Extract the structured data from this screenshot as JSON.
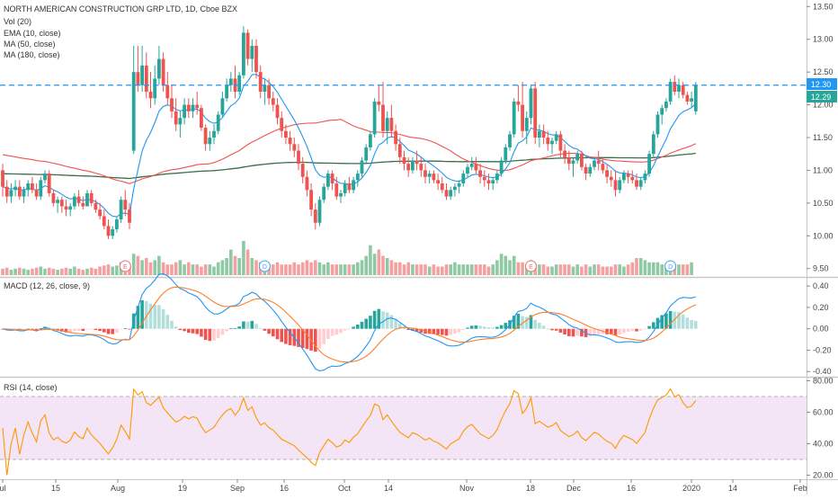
{
  "header": {
    "title": "NORTH AMERICAN CONSTRUCTION GRP LTD, 1D, Cboe BZX",
    "indicators": [
      "Vol (20)",
      "EMA (10, close)",
      "MA (50, close)",
      "MA (180, close)"
    ]
  },
  "macd_pane": {
    "label": "MACD (12, 26, close, 9)"
  },
  "rsi_pane": {
    "label": "RSI (14, close)"
  },
  "price_badges": {
    "upper": "12.30",
    "lower": "12.29"
  },
  "colors": {
    "up": "#26a69a",
    "down": "#ef5350",
    "vol_up": "#8fc9a4",
    "vol_down": "#f5a0a0",
    "ema": "#2196f3",
    "ma50": "#ef5350",
    "ma180": "#3b6e4a",
    "macd": "#2196f3",
    "signal": "#ff7f27",
    "hist_pos_strong": "#26a69a",
    "hist_pos_weak": "#b2dfdb",
    "hist_neg_strong": "#ef5350",
    "hist_neg_weak": "#ffcdd2",
    "rsi": "#ff9800",
    "rsi_band": "#f3e5f5",
    "hline": "#2196f3"
  },
  "events": [
    {
      "symbol": "E",
      "index": 29
    },
    {
      "symbol": "D",
      "index": 62
    },
    {
      "symbol": "E",
      "index": 125
    },
    {
      "symbol": "D",
      "index": 158
    }
  ],
  "chart_data": [
    {
      "type": "candlestick",
      "title": "NORTH AMERICAN CONSTRUCTION GRP LTD, 1D, Cboe BZX",
      "x_ticks": [
        "ul",
        "15",
        "Aug",
        "19",
        "Sep",
        "16",
        "Oct",
        "14",
        "Nov",
        "18",
        "Dec",
        "16",
        "2020",
        "14",
        "Feb"
      ],
      "y_ticks": [
        9.5,
        10.0,
        10.5,
        11.0,
        11.5,
        12.0,
        12.5,
        13.0,
        13.5
      ],
      "ylim": [
        9.4,
        13.6
      ],
      "horizontal_line": 12.3,
      "ohlc": [
        [
          11.0,
          11.1,
          10.6,
          10.75
        ],
        [
          10.75,
          10.85,
          10.5,
          10.6
        ],
        [
          10.6,
          10.8,
          10.5,
          10.7
        ],
        [
          10.7,
          10.85,
          10.6,
          10.75
        ],
        [
          10.75,
          10.85,
          10.55,
          10.6
        ],
        [
          10.6,
          10.75,
          10.5,
          10.7
        ],
        [
          10.7,
          10.85,
          10.6,
          10.8
        ],
        [
          10.8,
          10.9,
          10.65,
          10.7
        ],
        [
          10.7,
          10.8,
          10.55,
          10.6
        ],
        [
          10.6,
          10.9,
          10.55,
          10.85
        ],
        [
          10.85,
          11.0,
          10.8,
          10.95
        ],
        [
          10.95,
          11.0,
          10.6,
          10.65
        ],
        [
          10.65,
          10.7,
          10.45,
          10.5
        ],
        [
          10.5,
          10.6,
          10.35,
          10.55
        ],
        [
          10.55,
          10.6,
          10.35,
          10.45
        ],
        [
          10.45,
          10.55,
          10.3,
          10.4
        ],
        [
          10.4,
          10.5,
          10.3,
          10.45
        ],
        [
          10.45,
          10.65,
          10.4,
          10.6
        ],
        [
          10.6,
          10.7,
          10.45,
          10.5
        ],
        [
          10.5,
          10.6,
          10.4,
          10.45
        ],
        [
          10.45,
          10.7,
          10.45,
          10.65
        ],
        [
          10.65,
          10.7,
          10.45,
          10.5
        ],
        [
          10.5,
          10.55,
          10.35,
          10.4
        ],
        [
          10.4,
          10.5,
          10.25,
          10.3
        ],
        [
          10.3,
          10.4,
          10.1,
          10.15
        ],
        [
          10.15,
          10.25,
          9.95,
          10.0
        ],
        [
          10.0,
          10.15,
          9.95,
          10.1
        ],
        [
          10.1,
          10.3,
          10.05,
          10.25
        ],
        [
          10.25,
          10.6,
          10.2,
          10.55
        ],
        [
          10.55,
          10.7,
          10.3,
          10.4
        ],
        [
          10.4,
          10.5,
          10.1,
          10.2
        ],
        [
          11.3,
          12.9,
          11.25,
          12.5
        ],
        [
          12.5,
          12.9,
          12.2,
          12.3
        ],
        [
          12.3,
          12.9,
          12.2,
          12.6
        ],
        [
          12.6,
          12.8,
          12.1,
          12.2
        ],
        [
          12.2,
          12.5,
          11.95,
          12.1
        ],
        [
          12.1,
          12.6,
          12.0,
          12.4
        ],
        [
          12.4,
          12.9,
          12.3,
          12.7
        ],
        [
          12.7,
          12.8,
          12.2,
          12.3
        ],
        [
          12.3,
          12.5,
          12.0,
          12.1
        ],
        [
          12.1,
          12.3,
          11.8,
          11.9
        ],
        [
          11.9,
          12.1,
          11.6,
          11.7
        ],
        [
          11.7,
          11.9,
          11.5,
          11.8
        ],
        [
          11.8,
          12.1,
          11.7,
          12.0
        ],
        [
          12.0,
          12.1,
          11.8,
          11.9
        ],
        [
          11.9,
          12.1,
          11.8,
          12.0
        ],
        [
          12.0,
          12.2,
          11.85,
          11.95
        ],
        [
          11.95,
          12.0,
          11.6,
          11.65
        ],
        [
          11.65,
          11.7,
          11.3,
          11.4
        ],
        [
          11.4,
          11.6,
          11.3,
          11.5
        ],
        [
          11.5,
          11.7,
          11.4,
          11.6
        ],
        [
          11.6,
          11.9,
          11.55,
          11.85
        ],
        [
          11.85,
          12.2,
          11.8,
          12.1
        ],
        [
          12.1,
          12.4,
          12.05,
          12.3
        ],
        [
          12.3,
          12.5,
          12.2,
          12.4
        ],
        [
          12.4,
          12.6,
          12.1,
          12.2
        ],
        [
          12.2,
          12.5,
          12.15,
          12.45
        ],
        [
          12.45,
          13.2,
          12.4,
          13.1
        ],
        [
          13.1,
          13.15,
          12.6,
          12.7
        ],
        [
          12.7,
          13.0,
          12.5,
          12.9
        ],
        [
          12.9,
          13.0,
          12.4,
          12.5
        ],
        [
          12.5,
          12.6,
          12.1,
          12.2
        ],
        [
          12.2,
          12.4,
          12.0,
          12.3
        ],
        [
          12.3,
          12.4,
          12.0,
          12.1
        ],
        [
          12.1,
          12.2,
          11.9,
          12.0
        ],
        [
          12.0,
          12.1,
          11.7,
          11.8
        ],
        [
          11.8,
          11.9,
          11.5,
          11.6
        ],
        [
          11.6,
          11.7,
          11.4,
          11.5
        ],
        [
          11.5,
          11.6,
          11.3,
          11.4
        ],
        [
          11.4,
          11.5,
          11.2,
          11.3
        ],
        [
          11.3,
          11.4,
          11.0,
          11.1
        ],
        [
          11.1,
          11.2,
          10.8,
          10.9
        ],
        [
          10.9,
          11.0,
          10.6,
          10.7
        ],
        [
          10.7,
          10.8,
          10.3,
          10.4
        ],
        [
          10.4,
          10.5,
          10.1,
          10.2
        ],
        [
          10.2,
          10.6,
          10.15,
          10.55
        ],
        [
          10.55,
          10.8,
          10.5,
          10.75
        ],
        [
          10.75,
          11.0,
          10.7,
          10.95
        ],
        [
          10.95,
          11.0,
          10.7,
          10.8
        ],
        [
          10.8,
          10.9,
          10.55,
          10.6
        ],
        [
          10.6,
          10.7,
          10.5,
          10.65
        ],
        [
          10.65,
          10.85,
          10.6,
          10.8
        ],
        [
          10.8,
          10.9,
          10.65,
          10.7
        ],
        [
          10.7,
          10.9,
          10.65,
          10.85
        ],
        [
          10.85,
          11.0,
          10.75,
          10.95
        ],
        [
          10.95,
          11.2,
          10.9,
          11.15
        ],
        [
          11.15,
          11.4,
          11.1,
          11.35
        ],
        [
          11.35,
          11.6,
          11.3,
          11.55
        ],
        [
          11.55,
          12.1,
          11.5,
          12.05
        ],
        [
          12.05,
          12.3,
          11.9,
          12.0
        ],
        [
          12.0,
          12.35,
          11.5,
          11.6
        ],
        [
          11.6,
          11.9,
          11.4,
          11.8
        ],
        [
          11.8,
          12.0,
          11.5,
          11.6
        ],
        [
          11.6,
          11.7,
          11.3,
          11.4
        ],
        [
          11.4,
          11.5,
          11.1,
          11.2
        ],
        [
          11.2,
          11.3,
          11.0,
          11.1
        ],
        [
          11.1,
          11.2,
          10.9,
          11.0
        ],
        [
          11.0,
          11.2,
          10.95,
          11.15
        ],
        [
          11.15,
          11.3,
          11.0,
          11.1
        ],
        [
          11.1,
          11.2,
          10.9,
          11.0
        ],
        [
          11.0,
          11.1,
          10.8,
          10.9
        ],
        [
          10.9,
          11.0,
          10.8,
          10.95
        ],
        [
          10.95,
          11.0,
          10.8,
          10.85
        ],
        [
          10.85,
          10.95,
          10.7,
          10.8
        ],
        [
          10.8,
          10.9,
          10.65,
          10.7
        ],
        [
          10.7,
          10.8,
          10.55,
          10.6
        ],
        [
          10.6,
          10.75,
          10.55,
          10.7
        ],
        [
          10.7,
          10.8,
          10.6,
          10.75
        ],
        [
          10.75,
          10.85,
          10.65,
          10.8
        ],
        [
          10.8,
          11.0,
          10.75,
          10.95
        ],
        [
          10.95,
          11.1,
          10.9,
          11.05
        ],
        [
          11.05,
          11.2,
          11.0,
          11.1
        ],
        [
          11.1,
          11.2,
          10.95,
          11.0
        ],
        [
          11.0,
          11.1,
          10.8,
          10.9
        ],
        [
          10.9,
          11.0,
          10.75,
          10.85
        ],
        [
          10.85,
          10.95,
          10.7,
          10.8
        ],
        [
          10.8,
          10.9,
          10.7,
          10.85
        ],
        [
          10.85,
          11.0,
          10.8,
          10.95
        ],
        [
          10.95,
          11.2,
          10.9,
          11.15
        ],
        [
          11.15,
          11.4,
          11.1,
          11.35
        ],
        [
          11.35,
          11.6,
          11.3,
          11.55
        ],
        [
          11.55,
          12.1,
          11.5,
          12.05
        ],
        [
          12.05,
          12.3,
          11.9,
          12.0
        ],
        [
          12.0,
          12.35,
          11.5,
          11.6
        ],
        [
          11.6,
          11.9,
          11.4,
          11.8
        ],
        [
          11.8,
          12.3,
          11.7,
          12.25
        ],
        [
          12.25,
          12.35,
          11.4,
          11.5
        ],
        [
          11.5,
          11.7,
          11.35,
          11.6
        ],
        [
          11.6,
          11.7,
          11.4,
          11.5
        ],
        [
          11.5,
          11.6,
          11.3,
          11.4
        ],
        [
          11.4,
          11.5,
          11.25,
          11.45
        ],
        [
          11.45,
          11.6,
          11.4,
          11.55
        ],
        [
          11.55,
          11.6,
          11.2,
          11.3
        ],
        [
          11.3,
          11.4,
          11.1,
          11.2
        ],
        [
          11.2,
          11.3,
          11.0,
          11.1
        ],
        [
          11.1,
          11.2,
          10.9,
          11.15
        ],
        [
          11.15,
          11.3,
          11.1,
          11.25
        ],
        [
          11.25,
          11.3,
          11.0,
          11.05
        ],
        [
          11.05,
          11.1,
          10.85,
          10.95
        ],
        [
          10.95,
          11.1,
          10.9,
          11.05
        ],
        [
          11.05,
          11.2,
          11.0,
          11.15
        ],
        [
          11.15,
          11.3,
          11.0,
          11.1
        ],
        [
          11.1,
          11.2,
          10.95,
          11.0
        ],
        [
          11.0,
          11.1,
          10.8,
          10.9
        ],
        [
          10.9,
          11.0,
          10.75,
          10.85
        ],
        [
          10.85,
          11.0,
          10.6,
          10.7
        ],
        [
          10.7,
          10.9,
          10.65,
          10.85
        ],
        [
          10.85,
          11.0,
          10.8,
          10.95
        ],
        [
          10.95,
          11.0,
          10.8,
          10.9
        ],
        [
          10.9,
          11.0,
          10.8,
          10.85
        ],
        [
          10.85,
          10.95,
          10.7,
          10.75
        ],
        [
          10.75,
          10.9,
          10.7,
          10.85
        ],
        [
          10.85,
          11.0,
          10.8,
          10.95
        ],
        [
          10.95,
          11.3,
          10.9,
          11.25
        ],
        [
          11.25,
          11.6,
          11.2,
          11.55
        ],
        [
          11.55,
          11.9,
          11.5,
          11.85
        ],
        [
          11.85,
          12.0,
          11.7,
          11.95
        ],
        [
          11.95,
          12.1,
          11.9,
          12.05
        ],
        [
          12.05,
          12.4,
          12.0,
          12.35
        ],
        [
          12.35,
          12.45,
          12.15,
          12.2
        ],
        [
          12.2,
          12.4,
          12.1,
          12.3
        ],
        [
          12.3,
          12.35,
          12.1,
          12.15
        ],
        [
          12.15,
          12.2,
          12.0,
          12.05
        ],
        [
          12.05,
          12.2,
          11.95,
          12.1
        ],
        [
          11.9,
          12.35,
          11.85,
          12.3
        ]
      ],
      "series": [
        {
          "name": "EMA (10, close)"
        },
        {
          "name": "MA (50, close)"
        },
        {
          "name": "MA (180, close)"
        }
      ]
    },
    {
      "type": "bar",
      "title": "Vol (20)",
      "values": [
        0.3,
        0.35,
        0.25,
        0.3,
        0.35,
        0.3,
        0.25,
        0.3,
        0.35,
        0.4,
        0.3,
        0.35,
        0.3,
        0.25,
        0.3,
        0.35,
        0.3,
        0.4,
        0.3,
        0.25,
        0.3,
        0.35,
        0.3,
        0.4,
        0.45,
        0.5,
        0.4,
        0.45,
        0.6,
        0.4,
        0.45,
        1.0,
        0.9,
        0.7,
        0.8,
        0.6,
        0.7,
        0.9,
        0.6,
        0.5,
        0.5,
        0.6,
        0.7,
        0.5,
        0.6,
        0.5,
        0.5,
        0.4,
        0.5,
        0.5,
        0.4,
        0.6,
        0.7,
        0.8,
        1.2,
        0.9,
        0.8,
        1.6,
        1.2,
        0.8,
        0.7,
        0.6,
        0.6,
        0.5,
        0.5,
        0.6,
        0.5,
        0.5,
        0.5,
        0.6,
        0.5,
        0.6,
        0.7,
        0.6,
        0.7,
        0.6,
        0.5,
        0.6,
        0.5,
        0.5,
        0.5,
        0.5,
        0.5,
        0.5,
        0.6,
        0.7,
        0.9,
        1.4,
        1.0,
        1.2,
        0.9,
        0.8,
        0.7,
        0.6,
        0.6,
        0.5,
        0.6,
        0.5,
        0.5,
        0.5,
        0.5,
        0.4,
        0.5,
        0.4,
        0.4,
        0.5,
        0.5,
        0.6,
        0.5,
        0.5,
        0.5,
        0.5,
        0.5,
        0.5,
        0.5,
        0.4,
        0.5,
        0.7,
        1.0,
        0.9,
        0.7,
        0.9,
        0.6,
        0.6,
        0.5,
        0.7,
        0.5,
        0.5,
        0.5,
        0.4,
        0.4,
        0.5,
        0.5,
        0.5,
        0.5,
        0.4,
        0.5,
        0.4,
        0.5,
        0.4,
        0.5,
        0.5,
        0.4,
        0.4,
        0.4,
        0.5,
        0.5,
        0.4,
        0.5,
        0.6,
        0.8,
        0.8,
        0.7,
        0.6,
        0.6,
        0.6,
        0.5,
        0.5,
        0.5,
        0.5,
        0.5,
        0.5,
        0.5,
        0.6
      ]
    },
    {
      "type": "line",
      "title": "MACD (12, 26, close, 9)",
      "y_ticks": [
        -0.4,
        -0.2,
        0.0,
        0.2,
        0.4
      ],
      "ylim": [
        -0.44,
        0.46
      ],
      "series": [
        {
          "name": "MACD"
        },
        {
          "name": "Signal"
        },
        {
          "name": "Histogram"
        }
      ]
    },
    {
      "type": "line",
      "title": "RSI (14, close)",
      "y_ticks": [
        20,
        40,
        60,
        80
      ],
      "ylim": [
        18,
        82
      ],
      "band": [
        30,
        70
      ],
      "series": [
        {
          "name": "RSI"
        }
      ]
    }
  ]
}
